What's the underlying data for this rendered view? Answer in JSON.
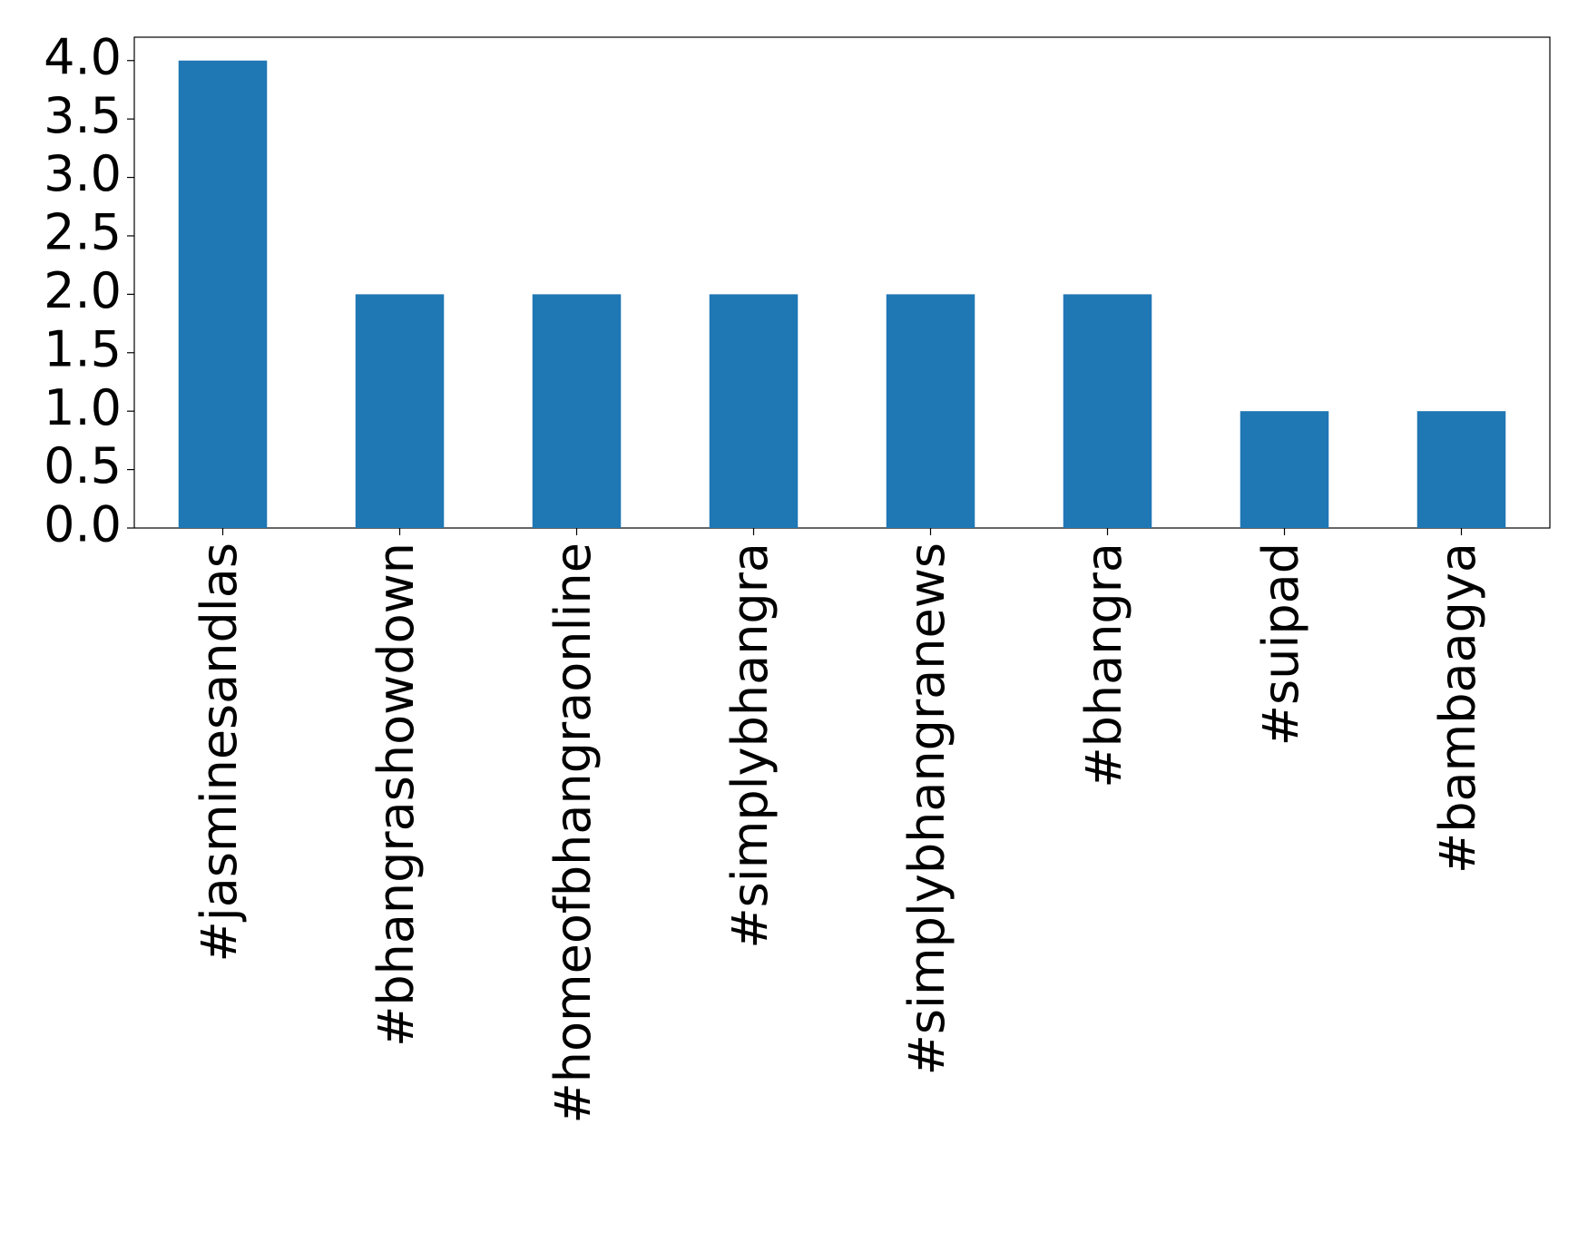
{
  "chart_data": {
    "type": "bar",
    "categories": [
      "#jasminesandlas",
      "#bhangrashowdown",
      "#homeofbhangraonline",
      "#simplybhangra",
      "#simplybhangranews",
      "#bhangra",
      "#suipad",
      "#bambaagya"
    ],
    "values": [
      4,
      2,
      2,
      2,
      2,
      2,
      1,
      1
    ],
    "color": "#1f77b4",
    "ylim": [
      0,
      4.2
    ],
    "yticks": [
      {
        "value": 0,
        "label": "0.0"
      },
      {
        "value": 0.5,
        "label": "0.5"
      },
      {
        "value": 1,
        "label": "1.0"
      },
      {
        "value": 1.5,
        "label": "1.5"
      },
      {
        "value": 2,
        "label": "2.0"
      },
      {
        "value": 2.5,
        "label": "2.5"
      },
      {
        "value": 3,
        "label": "3.0"
      },
      {
        "value": 3.5,
        "label": "3.5"
      },
      {
        "value": 4,
        "label": "4.0"
      }
    ],
    "grid": false
  }
}
